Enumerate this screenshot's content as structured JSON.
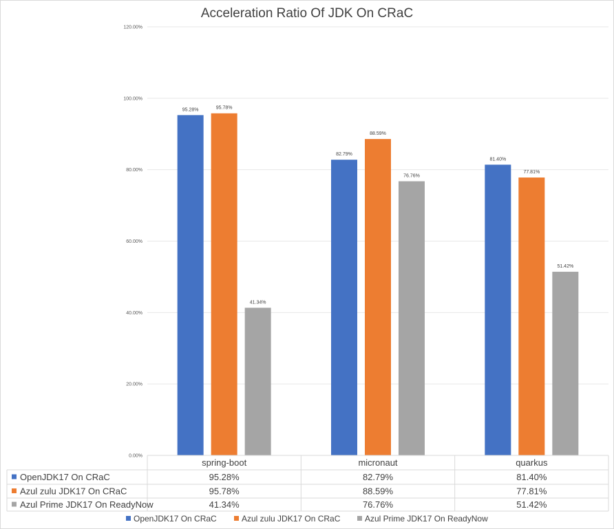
{
  "chart_data": {
    "type": "bar",
    "title": "Acceleration Ratio Of JDK On CRaC",
    "categories": [
      "spring-boot",
      "micronaut",
      "quarkus"
    ],
    "ylim": [
      0,
      120
    ],
    "yticks": [
      "0.00%",
      "20.00%",
      "40.00%",
      "60.00%",
      "80.00%",
      "100.00%",
      "120.00%"
    ],
    "grid": true,
    "legend_position": "bottom",
    "data_table": true,
    "series": [
      {
        "name": "OpenJDK17 On CRaC",
        "color": "#4472c4",
        "values": [
          95.28,
          82.79,
          81.4
        ],
        "labels": [
          "95.28%",
          "82.79%",
          "81.40%"
        ]
      },
      {
        "name": "Azul zulu JDK17 On CRaC",
        "color": "#ed7d31",
        "values": [
          95.78,
          88.59,
          77.81
        ],
        "labels": [
          "95.78%",
          "88.59%",
          "77.81%"
        ]
      },
      {
        "name": "Azul Prime JDK17  On ReadyNow",
        "color": "#a5a5a5",
        "values": [
          41.34,
          76.76,
          51.42
        ],
        "labels": [
          "41.34%",
          "76.76%",
          "51.42%"
        ]
      }
    ]
  }
}
